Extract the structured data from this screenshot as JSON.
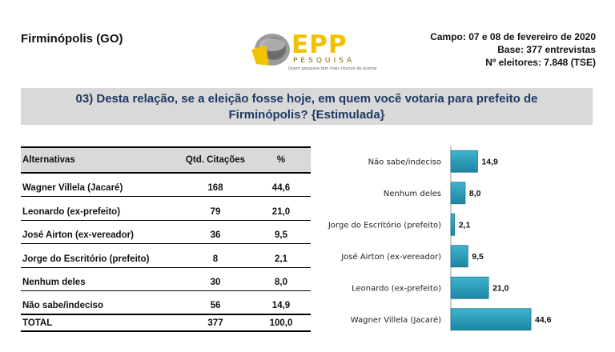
{
  "header": {
    "city": "Firminópolis (GO)",
    "logo_text": "EPP",
    "logo_sub": "PESQUISA",
    "logo_tagline": "Quem pesquisa tem mais chance de acertar",
    "campo": "Campo: 07 e 08 de fevereiro de 2020",
    "base": "Base: 377 entrevistas",
    "eleitores": "Nº eleitores: 7.848  (TSE)"
  },
  "question": {
    "line1": "03) Desta relação, se a eleição fosse hoje, em quem você votaria para prefeito de",
    "line2": "Firminópolis? {Estimulada}"
  },
  "table": {
    "headers": {
      "alt": "Alternativas",
      "qtd": "Qtd. Citações",
      "pct": "%"
    },
    "rows": [
      {
        "alt": "Wagner Villela (Jacaré)",
        "qtd": "168",
        "pct": "44,6"
      },
      {
        "alt": "Leonardo (ex-prefeito)",
        "qtd": "79",
        "pct": "21,0"
      },
      {
        "alt": "José Airton (ex-vereador)",
        "qtd": "36",
        "pct": "9,5"
      },
      {
        "alt": "Jorge do Escritório (prefeito)",
        "qtd": "8",
        "pct": "2,1"
      },
      {
        "alt": "Nenhum deles",
        "qtd": "30",
        "pct": "8,0"
      },
      {
        "alt": "Não sabe/indeciso",
        "qtd": "56",
        "pct": "14,9"
      }
    ],
    "total": {
      "alt": "TOTAL",
      "qtd": "377",
      "pct": "100,0"
    }
  },
  "colors": {
    "bar": "#2a9fbc",
    "bar_dark": "#17748c",
    "header_bg": "#d9d9d9",
    "logo_yellow": "#f2c200"
  },
  "chart_data": {
    "type": "bar",
    "orientation": "horizontal",
    "categories": [
      "Não sabe/indeciso",
      "Nenhum deles",
      "Jorge do Escritório (prefeito)",
      "José Airton (ex-vereador)",
      "Leonardo (ex-prefeito)",
      "Wagner Villela (Jacaré)"
    ],
    "values": [
      14.9,
      8.0,
      2.1,
      9.5,
      21.0,
      44.6
    ],
    "value_labels": [
      "14,9",
      "8,0",
      "2,1",
      "9,5",
      "21,0",
      "44,6"
    ],
    "title": "",
    "xlabel": "",
    "ylabel": "",
    "xlim": [
      0,
      44.6
    ],
    "grid": false,
    "legend": "none"
  }
}
